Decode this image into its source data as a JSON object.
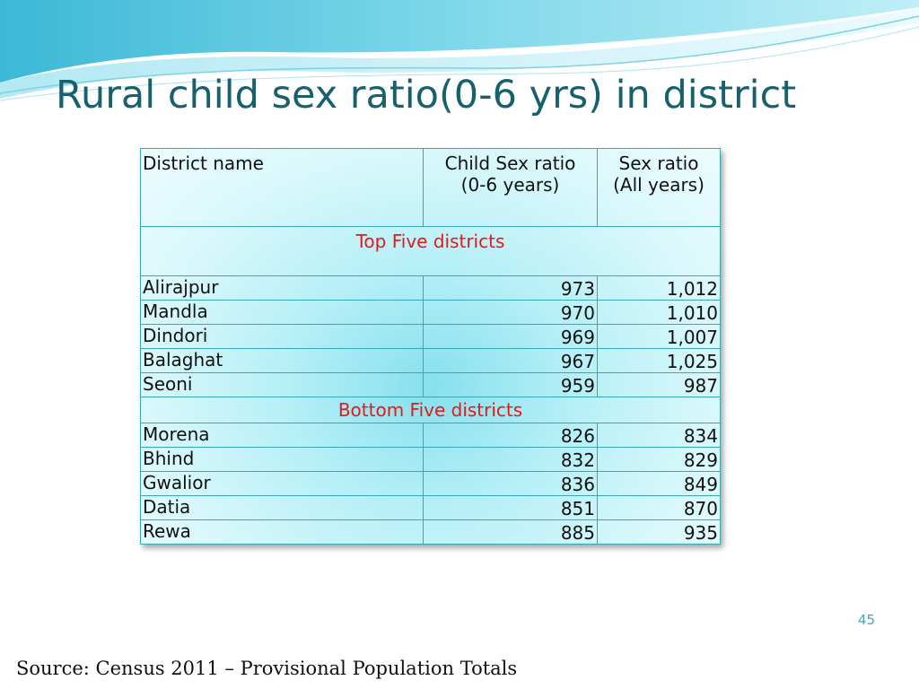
{
  "slide": {
    "title": "Rural child sex ratio(0-6 yrs) in district",
    "page_number": "45",
    "source": "Source: Census 2011 – Provisional Population Totals"
  },
  "table": {
    "headers": {
      "district": "District name",
      "child_ratio_line1": "Child Sex ratio",
      "child_ratio_line2": "(0-6 years)",
      "sex_ratio_line1": "Sex ratio",
      "sex_ratio_line2": "(All years)"
    },
    "top_section_label": "Top Five districts",
    "bottom_section_label": "Bottom Five districts",
    "top_rows": [
      {
        "district": "Alirajpur",
        "child_sex_ratio": "973",
        "sex_ratio": "1,012"
      },
      {
        "district": "Mandla",
        "child_sex_ratio": "970",
        "sex_ratio": "1,010"
      },
      {
        "district": "Dindori",
        "child_sex_ratio": "969",
        "sex_ratio": "1,007"
      },
      {
        "district": "Balaghat",
        "child_sex_ratio": "967",
        "sex_ratio": "1,025"
      },
      {
        "district": "Seoni",
        "child_sex_ratio": "959",
        "sex_ratio": "987"
      }
    ],
    "bottom_rows": [
      {
        "district": "Morena",
        "child_sex_ratio": "826",
        "sex_ratio": "834"
      },
      {
        "district": "Bhind",
        "child_sex_ratio": "832",
        "sex_ratio": "829"
      },
      {
        "district": "Gwalior",
        "child_sex_ratio": "836",
        "sex_ratio": "849"
      },
      {
        "district": "Datia",
        "child_sex_ratio": "851",
        "sex_ratio": "870"
      },
      {
        "district": "Rewa",
        "child_sex_ratio": "885",
        "sex_ratio": "935"
      }
    ]
  },
  "colors": {
    "title": "#17606e",
    "section_label": "#e81818",
    "border": "#3aa7b8",
    "page_number": "#4aa4b8"
  }
}
